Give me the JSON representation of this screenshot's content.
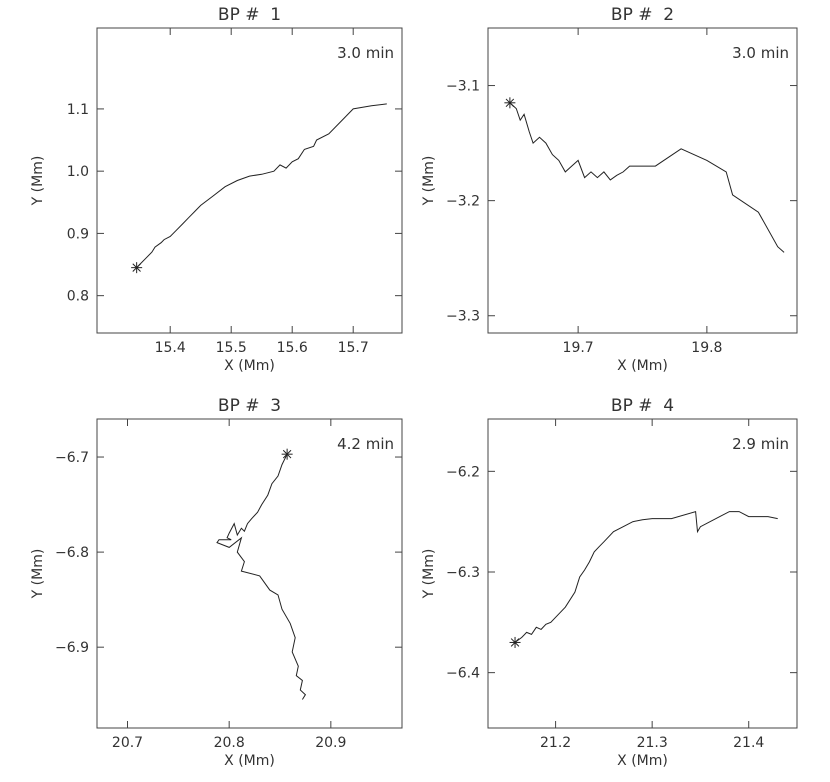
{
  "chart_data": [
    {
      "type": "line",
      "title": "BP #  1",
      "xlabel": "X (Mm)",
      "ylabel": "Y (Mm)",
      "annotation": "3.0 min",
      "xlim": [
        15.28,
        15.78
      ],
      "ylim": [
        0.74,
        1.23
      ],
      "xticks": [
        15.4,
        15.5,
        15.6,
        15.7
      ],
      "yticks": [
        0.8,
        0.9,
        1.0,
        1.1
      ],
      "xticklabels": [
        "15.4",
        "15.5",
        "15.6",
        "15.7"
      ],
      "yticklabels": [
        "0.8",
        "0.9",
        "1.0",
        "1.1"
      ],
      "start_marker": {
        "x": 15.345,
        "y": 0.845,
        "symbol": "asterisk"
      },
      "series": [
        {
          "x": [
            15.345,
            15.35,
            15.36,
            15.37,
            15.375,
            15.385,
            15.39,
            15.4,
            15.41,
            15.42,
            15.43,
            15.44,
            15.45,
            15.47,
            15.49,
            15.51,
            15.53,
            15.55,
            15.57,
            15.58,
            15.59,
            15.6,
            15.61,
            15.62,
            15.635,
            15.64,
            15.66,
            15.68,
            15.7,
            15.73,
            15.755
          ],
          "y": [
            0.845,
            0.85,
            0.86,
            0.87,
            0.878,
            0.885,
            0.89,
            0.895,
            0.905,
            0.915,
            0.925,
            0.935,
            0.945,
            0.96,
            0.975,
            0.985,
            0.992,
            0.995,
            1.0,
            1.01,
            1.005,
            1.015,
            1.02,
            1.035,
            1.04,
            1.05,
            1.06,
            1.08,
            1.1,
            1.105,
            1.108
          ]
        }
      ]
    },
    {
      "type": "line",
      "title": "BP #  2",
      "xlabel": "X (Mm)",
      "ylabel": "Y (Mm)",
      "annotation": "3.0 min",
      "xlim": [
        19.63,
        19.87
      ],
      "ylim": [
        -3.315,
        -3.05
      ],
      "xticks": [
        19.7,
        19.8
      ],
      "yticks": [
        -3.1,
        -3.2,
        -3.3
      ],
      "xticklabels": [
        "19.7",
        "19.8"
      ],
      "yticklabels": [
        "−3.1",
        "−3.2",
        "−3.3"
      ],
      "start_marker": {
        "x": 19.647,
        "y": -3.115,
        "symbol": "asterisk"
      },
      "series": [
        {
          "x": [
            19.647,
            19.652,
            19.655,
            19.658,
            19.662,
            19.665,
            19.67,
            19.675,
            19.68,
            19.685,
            19.69,
            19.695,
            19.7,
            19.705,
            19.71,
            19.715,
            19.72,
            19.725,
            19.73,
            19.735,
            19.74,
            19.76,
            19.78,
            19.8,
            19.815,
            19.82,
            19.84,
            19.855,
            19.86
          ],
          "y": [
            -3.115,
            -3.12,
            -3.13,
            -3.125,
            -3.14,
            -3.15,
            -3.145,
            -3.15,
            -3.16,
            -3.165,
            -3.175,
            -3.17,
            -3.165,
            -3.18,
            -3.175,
            -3.18,
            -3.175,
            -3.182,
            -3.178,
            -3.175,
            -3.17,
            -3.17,
            -3.155,
            -3.165,
            -3.175,
            -3.195,
            -3.21,
            -3.24,
            -3.245
          ]
        }
      ]
    },
    {
      "type": "line",
      "title": "BP #  3",
      "xlabel": "X (Mm)",
      "ylabel": "Y (Mm)",
      "annotation": "4.2 min",
      "xlim": [
        20.67,
        20.97
      ],
      "ylim": [
        -6.985,
        -6.66
      ],
      "xticks": [
        20.7,
        20.8,
        20.9
      ],
      "yticks": [
        -6.7,
        -6.8,
        -6.9
      ],
      "xticklabels": [
        "20.7",
        "20.8",
        "20.9"
      ],
      "yticklabels": [
        "−6.7",
        "−6.8",
        "−6.9"
      ],
      "start_marker": {
        "x": 20.857,
        "y": -6.697,
        "symbol": "asterisk"
      },
      "series": [
        {
          "x": [
            20.857,
            20.852,
            20.848,
            20.842,
            20.838,
            20.832,
            20.828,
            20.822,
            20.818,
            20.815,
            20.812,
            20.808,
            20.805,
            20.8,
            20.798,
            20.802,
            20.79,
            20.788,
            20.8,
            20.812,
            20.808,
            20.815,
            20.812,
            20.83,
            20.84,
            20.848,
            20.852,
            20.86,
            20.865,
            20.862,
            20.868,
            20.866,
            20.872,
            20.87,
            20.875,
            20.872
          ],
          "y": [
            -6.697,
            -6.708,
            -6.72,
            -6.728,
            -6.74,
            -6.75,
            -6.758,
            -6.765,
            -6.77,
            -6.778,
            -6.775,
            -6.782,
            -6.77,
            -6.78,
            -6.785,
            -6.787,
            -6.787,
            -6.79,
            -6.795,
            -6.785,
            -6.8,
            -6.81,
            -6.82,
            -6.825,
            -6.84,
            -6.845,
            -6.86,
            -6.875,
            -6.89,
            -6.905,
            -6.92,
            -6.93,
            -6.935,
            -6.945,
            -6.95,
            -6.955
          ]
        }
      ]
    },
    {
      "type": "line",
      "title": "BP #  4",
      "xlabel": "X (Mm)",
      "ylabel": "Y (Mm)",
      "annotation": "2.9 min",
      "xlim": [
        21.13,
        21.45
      ],
      "ylim": [
        -6.455,
        -6.148
      ],
      "xticks": [
        21.2,
        21.3,
        21.4
      ],
      "yticks": [
        -6.2,
        -6.3,
        -6.4
      ],
      "xticklabels": [
        "21.2",
        "21.3",
        "21.4"
      ],
      "yticklabels": [
        "−6.2",
        "−6.3",
        "−6.4"
      ],
      "start_marker": {
        "x": 21.158,
        "y": -6.37,
        "symbol": "asterisk"
      },
      "series": [
        {
          "x": [
            21.158,
            21.165,
            21.17,
            21.175,
            21.18,
            21.185,
            21.19,
            21.195,
            21.2,
            21.21,
            21.22,
            21.225,
            21.23,
            21.235,
            21.24,
            21.245,
            21.25,
            21.26,
            21.27,
            21.28,
            21.29,
            21.3,
            21.32,
            21.345,
            21.347,
            21.35,
            21.37,
            21.38,
            21.39,
            21.4,
            21.42,
            21.43
          ],
          "y": [
            -6.37,
            -6.365,
            -6.36,
            -6.362,
            -6.355,
            -6.357,
            -6.352,
            -6.35,
            -6.345,
            -6.335,
            -6.32,
            -6.305,
            -6.298,
            -6.29,
            -6.28,
            -6.275,
            -6.27,
            -6.26,
            -6.255,
            -6.25,
            -6.248,
            -6.247,
            -6.247,
            -6.24,
            -6.26,
            -6.255,
            -6.245,
            -6.24,
            -6.24,
            -6.245,
            -6.245,
            -6.247
          ]
        }
      ]
    }
  ]
}
